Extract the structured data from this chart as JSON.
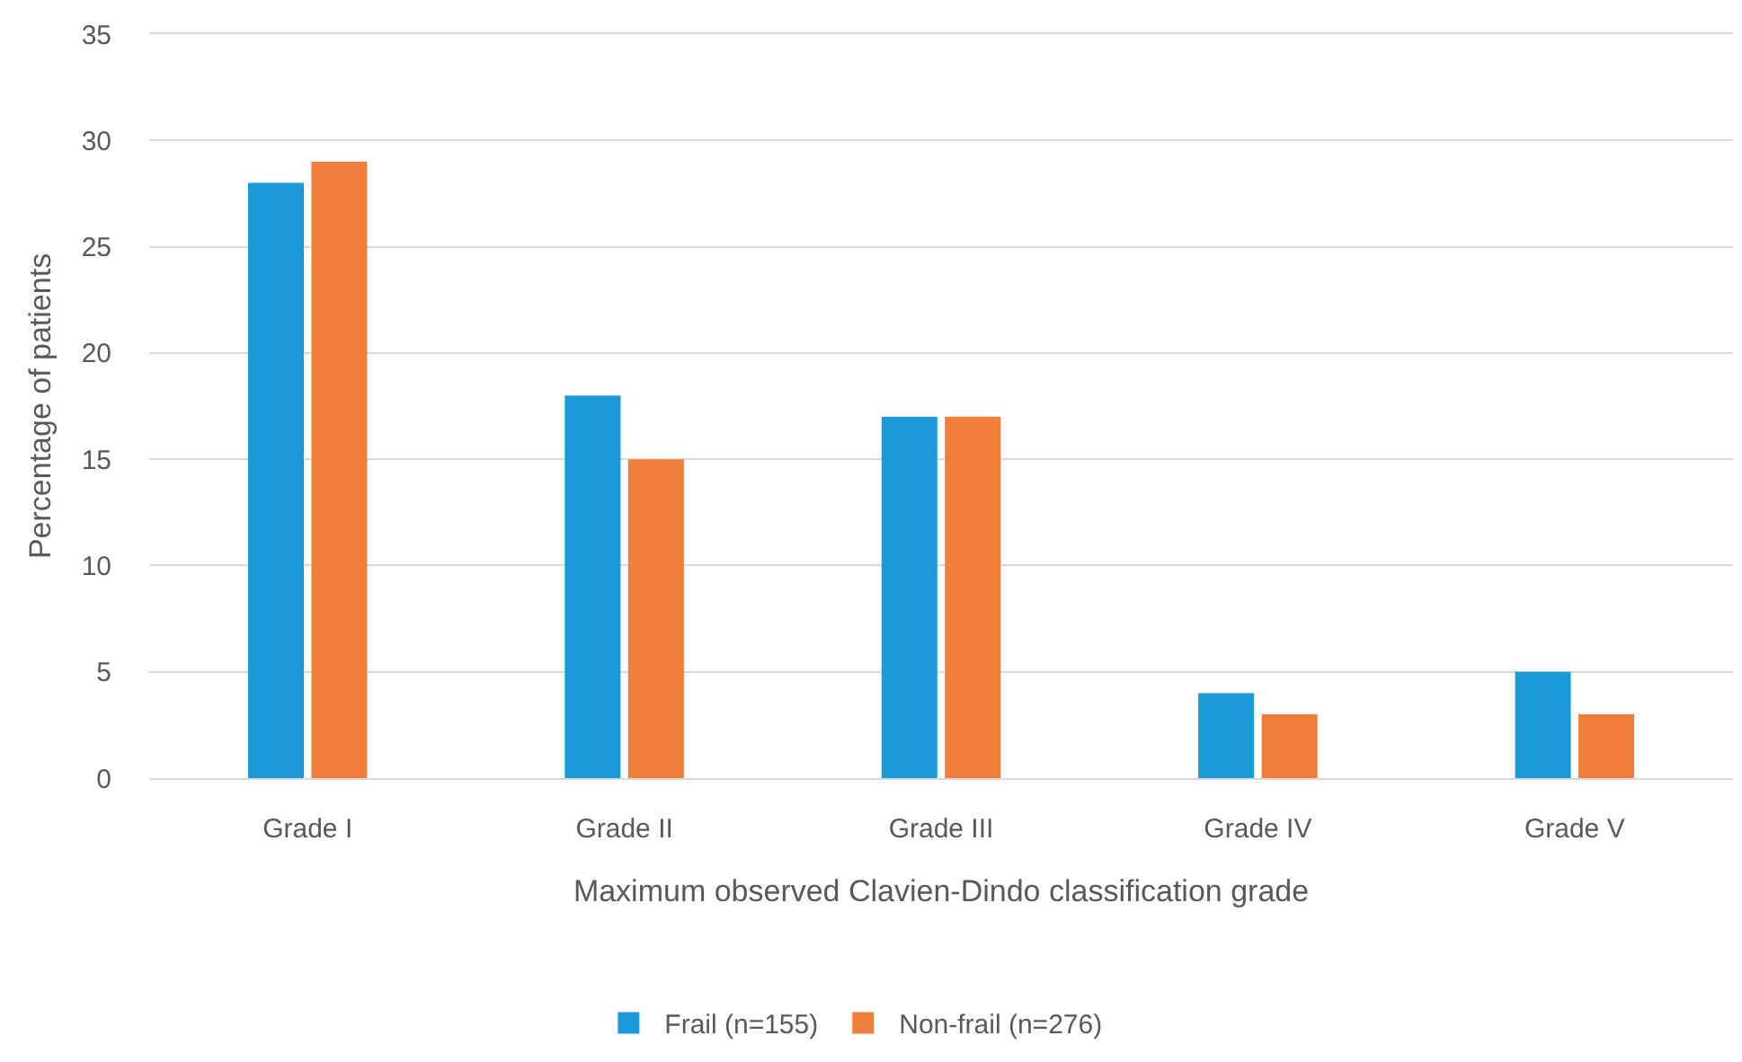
{
  "chart_data": {
    "type": "bar",
    "xlabel": "Maximum observed Clavien-Dindo classification grade",
    "ylabel": "Percentage of patients",
    "categories": [
      "Grade I",
      "Grade II",
      "Grade III",
      "Grade IV",
      "Grade V"
    ],
    "series": [
      {
        "name": "Frail (n=155)",
        "color": "#1a9ad6",
        "values": [
          28,
          18,
          17,
          4,
          5
        ]
      },
      {
        "name": "Non-frail (n=276)",
        "color": "#f07f3c",
        "values": [
          29,
          15,
          17,
          3,
          3
        ]
      }
    ],
    "ylim": [
      0,
      35
    ],
    "yticks": [
      0,
      5,
      10,
      15,
      20,
      25,
      30,
      35
    ],
    "grid": "y",
    "legend": "bottom"
  }
}
